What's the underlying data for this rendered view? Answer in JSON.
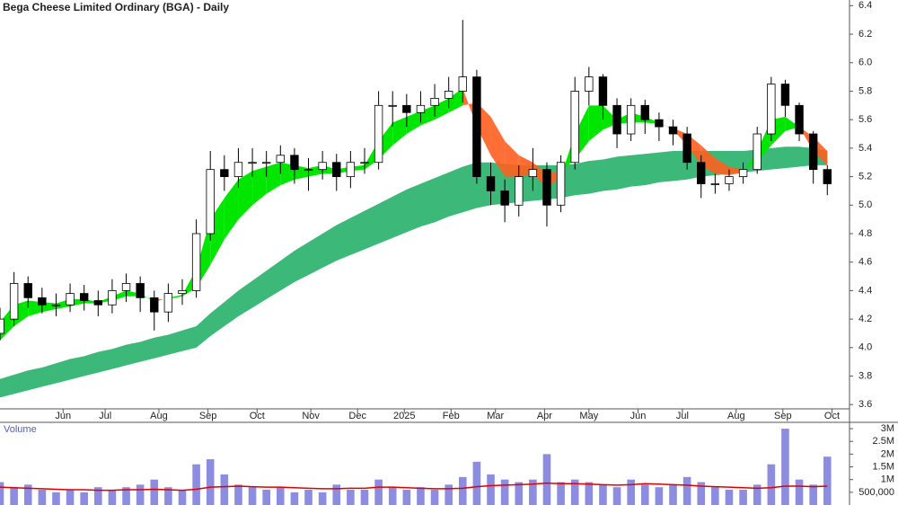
{
  "chart_data": [
    {
      "type": "candlestick",
      "title": "Bega Cheese Limited Ordinary (BGA) - Daily",
      "x": [
        0,
        6,
        12,
        18,
        24,
        30,
        36,
        42,
        48,
        54,
        60,
        66,
        72,
        78,
        84,
        90,
        96,
        102,
        108,
        114,
        120,
        126,
        132,
        138,
        144,
        150,
        156,
        162,
        168,
        174,
        180,
        186,
        192,
        198,
        204,
        210,
        216,
        222,
        228,
        234,
        240,
        246,
        252,
        258,
        264,
        270,
        276,
        282,
        288,
        294,
        300,
        306,
        312,
        318,
        324,
        330,
        336,
        342,
        348,
        354
      ],
      "open": [
        4.1,
        4.2,
        4.45,
        4.35,
        4.3,
        4.3,
        4.38,
        4.33,
        4.3,
        4.4,
        4.45,
        4.35,
        4.25,
        4.38,
        4.4,
        4.8,
        5.25,
        5.2,
        5.3,
        5.3,
        5.3,
        5.35,
        5.25,
        5.25,
        5.3,
        5.2,
        5.3,
        5.3,
        5.7,
        5.7,
        5.65,
        5.7,
        5.75,
        5.8,
        5.9,
        5.2,
        5.1,
        5.0,
        5.2,
        5.25,
        5.0,
        5.3,
        5.8,
        5.9,
        5.7,
        5.5,
        5.7,
        5.6,
        5.55,
        5.5,
        5.3,
        5.15,
        5.15,
        5.2,
        5.25,
        5.5,
        5.85,
        5.7,
        5.5,
        5.25
      ],
      "high": [
        4.28,
        4.53,
        4.5,
        4.42,
        4.38,
        4.45,
        4.44,
        4.4,
        4.48,
        4.52,
        4.5,
        4.4,
        4.45,
        4.48,
        4.9,
        5.38,
        5.35,
        5.4,
        5.4,
        5.38,
        5.42,
        5.4,
        5.33,
        5.38,
        5.36,
        5.38,
        5.4,
        5.8,
        5.8,
        5.78,
        5.8,
        5.85,
        5.9,
        6.3,
        5.95,
        5.3,
        5.18,
        5.28,
        5.4,
        5.3,
        5.35,
        5.9,
        5.97,
        5.92,
        5.75,
        5.75,
        5.74,
        5.65,
        5.6,
        5.55,
        5.35,
        5.22,
        5.25,
        5.3,
        5.55,
        5.9,
        5.88,
        5.72,
        5.52,
        5.28
      ],
      "low": [
        4.05,
        4.15,
        4.28,
        4.24,
        4.22,
        4.25,
        4.26,
        4.22,
        4.24,
        4.32,
        4.25,
        4.12,
        4.18,
        4.3,
        4.35,
        4.75,
        5.1,
        5.12,
        5.2,
        5.2,
        5.22,
        5.15,
        5.1,
        5.18,
        5.1,
        5.12,
        5.22,
        5.25,
        5.55,
        5.55,
        5.58,
        5.62,
        5.68,
        5.72,
        5.15,
        5.0,
        4.88,
        4.92,
        5.1,
        4.85,
        4.95,
        5.25,
        5.7,
        5.6,
        5.4,
        5.45,
        5.5,
        5.45,
        5.42,
        5.25,
        5.05,
        5.08,
        5.1,
        5.15,
        5.22,
        5.45,
        5.62,
        5.45,
        5.15,
        5.07
      ],
      "close": [
        4.2,
        4.45,
        4.35,
        4.3,
        4.3,
        4.38,
        4.33,
        4.3,
        4.4,
        4.45,
        4.35,
        4.25,
        4.38,
        4.4,
        4.8,
        5.25,
        5.2,
        5.3,
        5.3,
        5.3,
        5.35,
        5.25,
        5.25,
        5.3,
        5.2,
        5.3,
        5.3,
        5.7,
        5.7,
        5.65,
        5.7,
        5.75,
        5.8,
        5.9,
        5.2,
        5.1,
        5.0,
        5.2,
        5.25,
        5.0,
        5.3,
        5.8,
        5.9,
        5.7,
        5.5,
        5.7,
        5.6,
        5.55,
        5.5,
        5.3,
        5.15,
        5.15,
        5.2,
        5.25,
        5.5,
        5.85,
        5.7,
        5.5,
        5.25,
        5.15
      ],
      "ribbon_short": {
        "color_up": "#00e600",
        "color_down": "#ff5f1f",
        "fast": [
          4.18,
          4.3,
          4.33,
          4.32,
          4.31,
          4.34,
          4.34,
          4.32,
          4.36,
          4.4,
          4.38,
          4.32,
          4.35,
          4.37,
          4.55,
          4.9,
          5.05,
          5.18,
          5.24,
          5.27,
          5.3,
          5.28,
          5.26,
          5.28,
          5.25,
          5.27,
          5.28,
          5.45,
          5.58,
          5.62,
          5.66,
          5.7,
          5.75,
          5.82,
          5.55,
          5.35,
          5.2,
          5.2,
          5.22,
          5.12,
          5.2,
          5.5,
          5.7,
          5.7,
          5.6,
          5.65,
          5.62,
          5.58,
          5.53,
          5.42,
          5.28,
          5.22,
          5.21,
          5.23,
          5.38,
          5.6,
          5.62,
          5.55,
          5.38,
          5.28
        ],
        "slow": [
          4.05,
          4.15,
          4.22,
          4.25,
          4.27,
          4.29,
          4.31,
          4.31,
          4.33,
          4.36,
          4.36,
          4.34,
          4.34,
          4.36,
          4.42,
          4.58,
          4.76,
          4.9,
          5.0,
          5.08,
          5.14,
          5.18,
          5.2,
          5.22,
          5.22,
          5.24,
          5.25,
          5.32,
          5.42,
          5.5,
          5.56,
          5.6,
          5.65,
          5.7,
          5.72,
          5.62,
          5.45,
          5.35,
          5.3,
          5.22,
          5.24,
          5.32,
          5.45,
          5.53,
          5.57,
          5.58,
          5.58,
          5.57,
          5.54,
          5.5,
          5.42,
          5.33,
          5.27,
          5.25,
          5.3,
          5.42,
          5.52,
          5.55,
          5.48,
          5.38
        ]
      },
      "ribbon_long": {
        "color": "#3cb878",
        "upper": [
          3.78,
          3.81,
          3.84,
          3.86,
          3.89,
          3.92,
          3.94,
          3.97,
          3.99,
          4.02,
          4.04,
          4.07,
          4.09,
          4.12,
          4.15,
          4.24,
          4.32,
          4.4,
          4.47,
          4.54,
          4.61,
          4.68,
          4.74,
          4.8,
          4.86,
          4.91,
          4.96,
          5.01,
          5.06,
          5.11,
          5.15,
          5.19,
          5.23,
          5.27,
          5.3,
          5.3,
          5.29,
          5.28,
          5.28,
          5.28,
          5.28,
          5.29,
          5.31,
          5.32,
          5.34,
          5.35,
          5.36,
          5.37,
          5.38,
          5.38,
          5.38,
          5.38,
          5.38,
          5.38,
          5.39,
          5.4,
          5.41,
          5.41,
          5.4,
          5.38
        ],
        "lower": [
          3.65,
          3.675,
          3.7,
          3.725,
          3.75,
          3.775,
          3.8,
          3.825,
          3.85,
          3.875,
          3.9,
          3.925,
          3.95,
          3.975,
          4.0,
          4.08,
          4.15,
          4.22,
          4.28,
          4.34,
          4.4,
          4.46,
          4.51,
          4.56,
          4.61,
          4.65,
          4.69,
          4.73,
          4.77,
          4.81,
          4.85,
          4.88,
          4.92,
          4.95,
          4.98,
          5.0,
          5.01,
          5.02,
          5.03,
          5.04,
          5.05,
          5.07,
          5.08,
          5.1,
          5.11,
          5.13,
          5.14,
          5.16,
          5.17,
          5.18,
          5.2,
          5.21,
          5.22,
          5.23,
          5.24,
          5.25,
          5.26,
          5.27,
          5.28,
          5.28
        ]
      },
      "xlim": [
        0,
        363.5
      ],
      "xticks": [
        {
          "value": 27,
          "label": "Jun"
        },
        {
          "value": 45,
          "label": "Jul"
        },
        {
          "value": 68,
          "label": "Aug"
        },
        {
          "value": 89,
          "label": "Sep"
        },
        {
          "value": 110,
          "label": "Oct"
        },
        {
          "value": 133,
          "label": "Nov"
        },
        {
          "value": 153,
          "label": "Dec"
        },
        {
          "value": 173,
          "label": "2025"
        },
        {
          "value": 193,
          "label": "Feb"
        },
        {
          "value": 212,
          "label": "Mar"
        },
        {
          "value": 233,
          "label": "Apr"
        },
        {
          "value": 252,
          "label": "May"
        },
        {
          "value": 273,
          "label": "Jun"
        },
        {
          "value": 292,
          "label": "Jul"
        },
        {
          "value": 315,
          "label": "Aug"
        },
        {
          "value": 335,
          "label": "Sep"
        },
        {
          "value": 356,
          "label": "Oct"
        }
      ],
      "ylim": [
        3.57,
        6.44
      ],
      "yticks": [
        3.6,
        3.8,
        {
          "value": 4,
          "label": "4.0"
        },
        4.2,
        4.4,
        4.6,
        4.8,
        {
          "value": 5,
          "label": "5.0"
        },
        5.2,
        5.4,
        5.6,
        5.8,
        {
          "value": 6,
          "label": "6.0"
        },
        6.2,
        6.4
      ]
    },
    {
      "type": "bar",
      "title": "Volume",
      "color": "#8c8ce0",
      "ma_color": "#e00000",
      "values": [
        900000,
        700000,
        800000,
        600000,
        500000,
        600000,
        500000,
        700000,
        600000,
        700000,
        800000,
        1000000,
        700000,
        600000,
        1600000,
        1800000,
        1200000,
        800000,
        700000,
        600000,
        700000,
        500000,
        600000,
        500000,
        800000,
        600000,
        600000,
        1000000,
        700000,
        600000,
        700000,
        600000,
        800000,
        1100000,
        1700000,
        1200000,
        1000000,
        900000,
        1000000,
        2000000,
        900000,
        1000000,
        900000,
        800000,
        700000,
        1000000,
        800000,
        700000,
        800000,
        1100000,
        900000,
        700000,
        600000,
        600000,
        800000,
        1600000,
        3000000,
        1000000,
        800000,
        1900000
      ],
      "ma": [
        700000,
        680000,
        660000,
        640000,
        620000,
        600000,
        600000,
        580000,
        580000,
        600000,
        600000,
        620000,
        600000,
        580000,
        620000,
        700000,
        720000,
        740000,
        720000,
        700000,
        700000,
        680000,
        660000,
        640000,
        640000,
        660000,
        660000,
        700000,
        700000,
        680000,
        660000,
        640000,
        640000,
        660000,
        720000,
        760000,
        780000,
        800000,
        820000,
        860000,
        840000,
        840000,
        820000,
        800000,
        780000,
        800000,
        840000,
        820000,
        800000,
        780000,
        740000,
        720000,
        700000,
        680000,
        660000,
        680000,
        740000,
        740000,
        720000,
        740000
      ],
      "ylim": [
        0,
        3250000
      ],
      "yticks": [
        {
          "value": 500000,
          "label": "500,000"
        },
        {
          "value": 1000000,
          "label": "1M"
        },
        {
          "value": 1500000,
          "label": "1.5M"
        },
        {
          "value": 2000000,
          "label": "2M"
        },
        {
          "value": 2500000,
          "label": "2.5M"
        },
        {
          "value": 3000000,
          "label": "3M"
        }
      ]
    }
  ]
}
